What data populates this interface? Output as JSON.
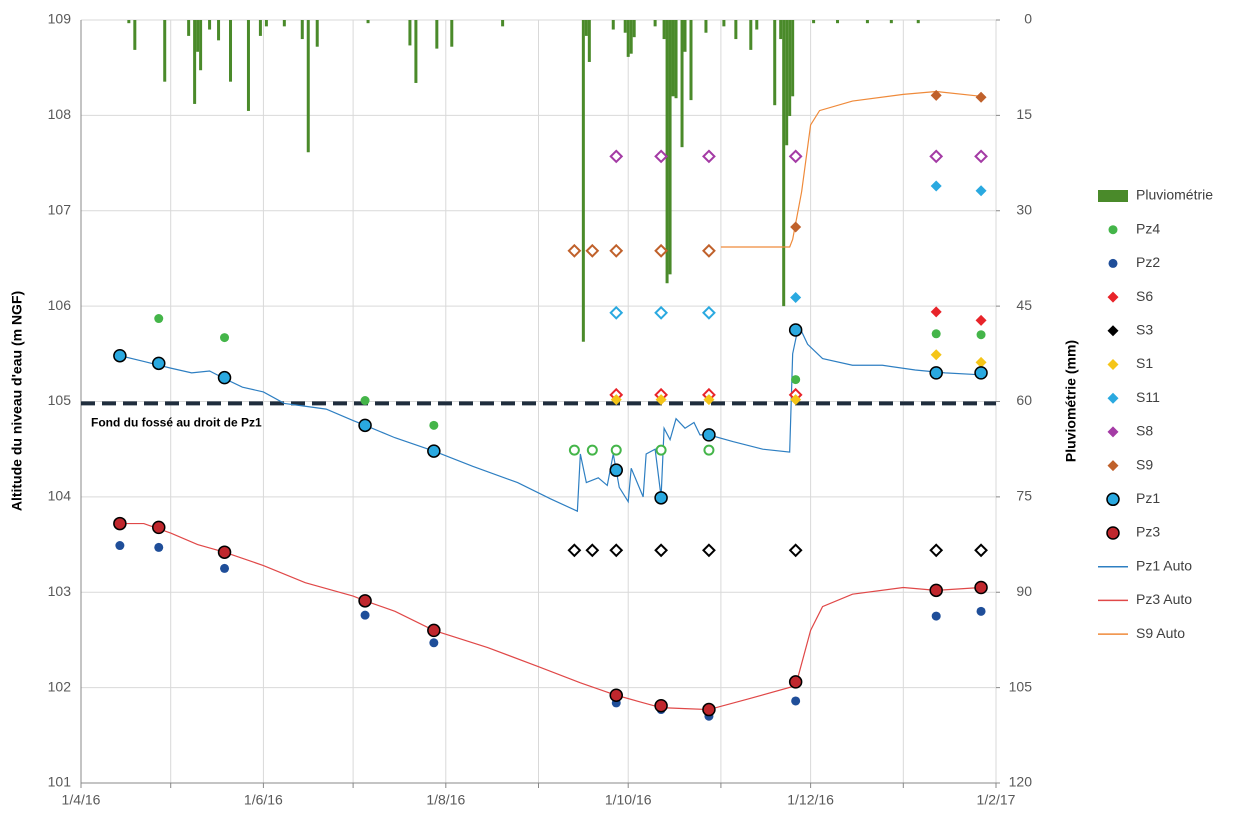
{
  "chart_data": {
    "type": "combo",
    "y_label": "Altitude du niveau d'eau (m NGF)",
    "y2_label": "Pluviométrie (mm)",
    "xlim": [
      "2016-04-01",
      "2017-02-01"
    ],
    "xticks": [
      {
        "value": "2016-04-01",
        "label": "1/4/16"
      },
      {
        "value": "2016-05-01",
        "label": null
      },
      {
        "value": "2016-06-01",
        "label": "1/6/16"
      },
      {
        "value": "2016-07-01",
        "label": null
      },
      {
        "value": "2016-08-01",
        "label": "1/8/16"
      },
      {
        "value": "2016-09-01",
        "label": null
      },
      {
        "value": "2016-10-01",
        "label": "1/10/16"
      },
      {
        "value": "2016-11-01",
        "label": null
      },
      {
        "value": "2016-12-01",
        "label": "1/12/16"
      },
      {
        "value": "2017-01-01",
        "label": null
      },
      {
        "value": "2017-02-01",
        "label": "1/2/17"
      }
    ],
    "ylim": [
      101,
      109
    ],
    "yticks": [
      101,
      102,
      103,
      104,
      105,
      106,
      107,
      108,
      109
    ],
    "y2lim": [
      0,
      120
    ],
    "y2ticks": [
      0,
      15,
      30,
      45,
      60,
      75,
      90,
      105,
      120
    ],
    "y2_inverted": true,
    "grid": true,
    "legend": "right",
    "reference_line": {
      "value": 104.98,
      "label": "Fond du fossé au droit de Pz1",
      "color": "#1f2d3d"
    },
    "series": [
      {
        "name": "Pluviométrie",
        "type": "bar",
        "axis": "y2",
        "color": "#4a8a2a",
        "x": [
          "2016-04-17",
          "2016-04-19",
          "2016-04-29",
          "2016-05-07",
          "2016-05-09",
          "2016-05-10",
          "2016-05-11",
          "2016-05-14",
          "2016-05-17",
          "2016-05-21",
          "2016-05-27",
          "2016-05-31",
          "2016-06-02",
          "2016-06-08",
          "2016-06-14",
          "2016-06-16",
          "2016-06-19",
          "2016-07-06",
          "2016-07-20",
          "2016-07-22",
          "2016-07-29",
          "2016-08-03",
          "2016-08-20",
          "2016-09-16",
          "2016-09-17",
          "2016-09-18",
          "2016-09-26",
          "2016-09-30",
          "2016-10-01",
          "2016-10-02",
          "2016-10-03",
          "2016-10-10",
          "2016-10-13",
          "2016-10-14",
          "2016-10-15",
          "2016-10-16",
          "2016-10-17",
          "2016-10-19",
          "2016-10-20",
          "2016-10-22",
          "2016-10-27",
          "2016-11-02",
          "2016-11-06",
          "2016-11-11",
          "2016-11-13",
          "2016-11-19",
          "2016-11-21",
          "2016-11-22",
          "2016-11-23",
          "2016-11-24",
          "2016-11-25",
          "2016-12-02",
          "2016-12-10",
          "2016-12-20",
          "2016-12-28",
          "2017-01-06"
        ],
        "values": [
          0.5,
          4.7,
          9.7,
          2.5,
          13.2,
          5,
          7.9,
          1.5,
          3.2,
          9.7,
          14.3,
          2.5,
          1,
          1,
          3,
          20.8,
          4.2,
          0.5,
          4,
          9.9,
          4.5,
          4.2,
          1,
          50.6,
          2.5,
          6.6,
          1.5,
          2,
          5.8,
          5.3,
          2.7,
          1,
          3,
          41.4,
          40,
          12,
          12.3,
          20,
          5,
          12.6,
          2,
          1,
          3,
          4.7,
          1.5,
          13.4,
          3,
          45,
          19.7,
          15.1,
          12,
          0.5,
          0.5,
          0.5,
          0.5,
          0.5
        ]
      },
      {
        "name": "Pz4",
        "type": "scatter",
        "marker": "circle",
        "color": "#44b549",
        "x": [
          "2016-04-27",
          "2016-05-19",
          "2016-07-05",
          "2016-07-28",
          "2016-09-13",
          "2016-09-19",
          "2016-09-27",
          "2016-10-12",
          "2016-10-28",
          "2016-11-26",
          "2017-01-12",
          "2017-01-27"
        ],
        "values": [
          105.87,
          105.67,
          105.01,
          104.75,
          104.49,
          104.49,
          104.49,
          104.49,
          104.49,
          105.23,
          105.71,
          105.7
        ],
        "hollow": [
          false,
          false,
          false,
          false,
          true,
          true,
          true,
          true,
          true,
          false,
          false,
          false
        ]
      },
      {
        "name": "Pz2",
        "type": "scatter",
        "marker": "circle",
        "color": "#1f4e99",
        "x": [
          "2016-04-14",
          "2016-04-27",
          "2016-05-19",
          "2016-07-05",
          "2016-07-28",
          "2016-09-27",
          "2016-10-12",
          "2016-10-28",
          "2016-11-26",
          "2017-01-12",
          "2017-01-27"
        ],
        "values": [
          103.49,
          103.47,
          103.25,
          102.76,
          102.47,
          101.84,
          101.77,
          101.7,
          101.86,
          102.75,
          102.8
        ]
      },
      {
        "name": "S6",
        "type": "scatter",
        "marker": "diamond",
        "color": "#e8242a",
        "x": [
          "2016-09-27",
          "2016-10-12",
          "2016-10-28",
          "2016-11-26",
          "2017-01-12",
          "2017-01-27"
        ],
        "values": [
          105.07,
          105.07,
          105.07,
          105.07,
          105.94,
          105.85
        ],
        "hollow": [
          true,
          true,
          true,
          true,
          false,
          false
        ]
      },
      {
        "name": "S3",
        "type": "scatter",
        "marker": "diamond",
        "color": "#000000",
        "x": [
          "2016-09-13",
          "2016-09-19",
          "2016-09-27",
          "2016-10-12",
          "2016-10-28",
          "2016-11-26",
          "2017-01-12",
          "2017-01-27"
        ],
        "values": [
          103.44,
          103.44,
          103.44,
          103.44,
          103.44,
          103.44,
          103.44,
          103.44
        ],
        "hollow": true
      },
      {
        "name": "S1",
        "type": "scatter",
        "marker": "diamond",
        "color": "#f5c518",
        "x": [
          "2016-09-27",
          "2016-10-12",
          "2016-10-28",
          "2016-11-26",
          "2017-01-12",
          "2017-01-27"
        ],
        "values": [
          105.02,
          105.02,
          105.02,
          105.02,
          105.49,
          105.41
        ]
      },
      {
        "name": "S11",
        "type": "scatter",
        "marker": "diamond",
        "color": "#2aa9e0",
        "x": [
          "2016-09-27",
          "2016-10-12",
          "2016-10-28",
          "2016-11-26",
          "2017-01-12",
          "2017-01-27"
        ],
        "values": [
          105.93,
          105.93,
          105.93,
          106.09,
          107.26,
          107.21
        ],
        "hollow": [
          true,
          true,
          true,
          false,
          false,
          false
        ]
      },
      {
        "name": "S8",
        "type": "scatter",
        "marker": "diamond",
        "color": "#a43ba5",
        "x": [
          "2016-09-27",
          "2016-10-12",
          "2016-10-28",
          "2016-11-26",
          "2017-01-12",
          "2017-01-27"
        ],
        "values": [
          107.57,
          107.57,
          107.57,
          107.57,
          107.57,
          107.57
        ],
        "hollow": true
      },
      {
        "name": "S9",
        "type": "scatter",
        "marker": "diamond",
        "color": "#c0612b",
        "x": [
          "2016-09-13",
          "2016-09-19",
          "2016-09-27",
          "2016-10-12",
          "2016-10-28",
          "2016-11-26",
          "2017-01-12",
          "2017-01-27"
        ],
        "values": [
          106.58,
          106.58,
          106.58,
          106.58,
          106.58,
          106.83,
          108.21,
          108.19
        ],
        "hollow": [
          true,
          true,
          true,
          true,
          true,
          false,
          false,
          false
        ]
      },
      {
        "name": "Pz1",
        "type": "scatter",
        "marker": "circle",
        "color": "#2aa9e0",
        "edgecolor": "#000000",
        "x": [
          "2016-04-14",
          "2016-04-27",
          "2016-05-19",
          "2016-07-05",
          "2016-07-28",
          "2016-09-27",
          "2016-10-12",
          "2016-10-28",
          "2016-11-26",
          "2017-01-12",
          "2017-01-27"
        ],
        "values": [
          105.48,
          105.4,
          105.25,
          104.75,
          104.48,
          104.28,
          103.99,
          104.65,
          105.75,
          105.3,
          105.3
        ]
      },
      {
        "name": "Pz3",
        "type": "scatter",
        "marker": "circle",
        "color": "#c0272d",
        "edgecolor": "#000000",
        "x": [
          "2016-04-14",
          "2016-04-27",
          "2016-05-19",
          "2016-07-05",
          "2016-07-28",
          "2016-09-27",
          "2016-10-12",
          "2016-10-28",
          "2016-11-26",
          "2017-01-12",
          "2017-01-27"
        ],
        "values": [
          103.72,
          103.68,
          103.42,
          102.91,
          102.6,
          101.92,
          101.81,
          101.77,
          102.06,
          103.02,
          103.05
        ]
      },
      {
        "name": "Pz1 Auto",
        "type": "line",
        "color": "#2e7fc2",
        "x": [
          "2016-04-14",
          "2016-04-22",
          "2016-05-01",
          "2016-05-08",
          "2016-05-14",
          "2016-05-19",
          "2016-05-25",
          "2016-06-01",
          "2016-06-08",
          "2016-06-15",
          "2016-06-22",
          "2016-07-01",
          "2016-07-05",
          "2016-07-15",
          "2016-07-28",
          "2016-08-10",
          "2016-08-25",
          "2016-09-05",
          "2016-09-14",
          "2016-09-15",
          "2016-09-17",
          "2016-09-21",
          "2016-09-24",
          "2016-09-26",
          "2016-09-28",
          "2016-10-01",
          "2016-10-02",
          "2016-10-06",
          "2016-10-07",
          "2016-10-10",
          "2016-10-12",
          "2016-10-13",
          "2016-10-15",
          "2016-10-17",
          "2016-10-20",
          "2016-10-23",
          "2016-10-25",
          "2016-10-28",
          "2016-11-05",
          "2016-11-15",
          "2016-11-24",
          "2016-11-25",
          "2016-11-27",
          "2016-11-30",
          "2016-12-05",
          "2016-12-15",
          "2016-12-25",
          "2017-01-05",
          "2017-01-15",
          "2017-01-27"
        ],
        "values": [
          105.48,
          105.42,
          105.35,
          105.3,
          105.32,
          105.24,
          105.15,
          105.1,
          104.98,
          104.95,
          104.92,
          104.8,
          104.75,
          104.62,
          104.48,
          104.32,
          104.15,
          103.98,
          103.85,
          104.45,
          104.15,
          104.2,
          104.12,
          104.45,
          104.1,
          103.95,
          104.3,
          104.0,
          104.45,
          104.5,
          104.0,
          104.72,
          104.6,
          104.82,
          104.72,
          104.78,
          104.65,
          104.65,
          104.58,
          104.5,
          104.47,
          105.5,
          105.8,
          105.6,
          105.45,
          105.38,
          105.38,
          105.33,
          105.3,
          105.28
        ]
      },
      {
        "name": "Pz3 Auto",
        "type": "line",
        "color": "#e04848",
        "x": [
          "2016-04-14",
          "2016-04-22",
          "2016-05-01",
          "2016-05-10",
          "2016-05-19",
          "2016-06-01",
          "2016-06-15",
          "2016-07-01",
          "2016-07-05",
          "2016-07-15",
          "2016-07-28",
          "2016-08-15",
          "2016-09-01",
          "2016-09-15",
          "2016-09-27",
          "2016-10-05",
          "2016-10-12",
          "2016-10-20",
          "2016-10-28",
          "2016-11-10",
          "2016-11-26",
          "2016-12-01",
          "2016-12-05",
          "2016-12-15",
          "2017-01-01",
          "2017-01-12",
          "2017-01-27"
        ],
        "values": [
          103.72,
          103.72,
          103.62,
          103.5,
          103.42,
          103.28,
          103.1,
          102.96,
          102.91,
          102.8,
          102.6,
          102.42,
          102.22,
          102.05,
          101.92,
          101.85,
          101.79,
          101.78,
          101.77,
          101.88,
          102.02,
          102.6,
          102.85,
          102.98,
          103.05,
          103.02,
          103.05
        ]
      },
      {
        "name": "S9 Auto",
        "type": "line",
        "color": "#ef8a3a",
        "x": [
          "2016-11-01",
          "2016-11-15",
          "2016-11-24",
          "2016-11-25",
          "2016-11-28",
          "2016-12-01",
          "2016-12-04",
          "2016-12-15",
          "2017-01-01",
          "2017-01-12",
          "2017-01-27"
        ],
        "values": [
          106.62,
          106.62,
          106.62,
          106.7,
          107.2,
          107.9,
          108.05,
          108.15,
          108.22,
          108.25,
          108.2
        ]
      }
    ]
  }
}
